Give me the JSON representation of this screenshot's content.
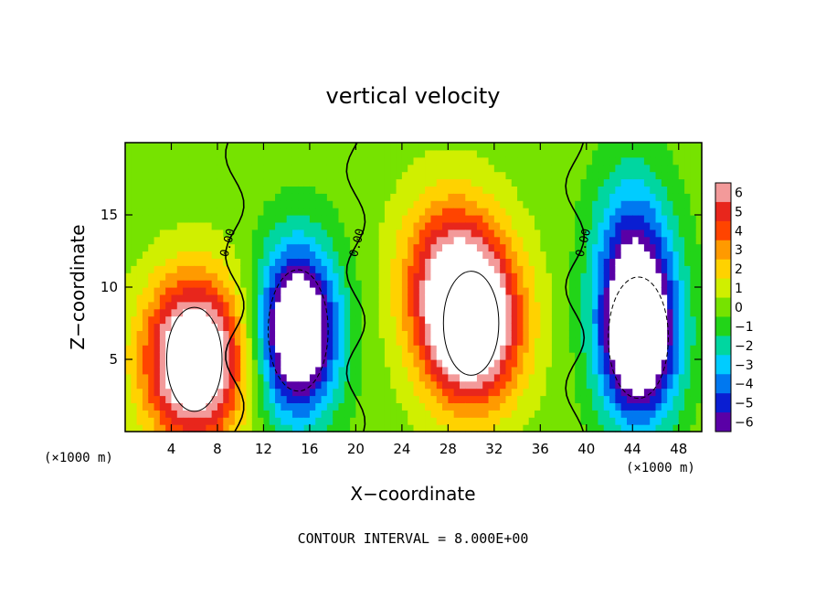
{
  "chart_data": {
    "type": "heatmap",
    "title": "vertical velocity",
    "xlabel": "X−coordinate",
    "ylabel": "Z−coordinate",
    "x_unit_left": "(×1000 m)",
    "x_unit_right": "(×1000 m)",
    "footer": "CONTOUR INTERVAL = 8.000E+00",
    "contour_label": "0.00",
    "xlim": [
      0,
      50
    ],
    "ylim": [
      0,
      20
    ],
    "x_ticks": [
      4,
      8,
      12,
      16,
      20,
      24,
      28,
      32,
      36,
      40,
      44,
      48
    ],
    "y_ticks": [
      5,
      10,
      15
    ],
    "colorbar": {
      "ticks": [
        6,
        5,
        4,
        3,
        2,
        1,
        0,
        -1,
        -2,
        -3,
        -4,
        -5,
        -6
      ],
      "labels": [
        "6",
        "5",
        "4",
        "3",
        "2",
        "1",
        "0",
        "−1",
        "−2",
        "−3",
        "−4",
        "−5",
        "−6"
      ],
      "colors": [
        "#f39a9a",
        "#e8261c",
        "#ff4400",
        "#ff9a00",
        "#ffd200",
        "#d0ef00",
        "#76e300",
        "#22d418",
        "#00d6a0",
        "#00ccff",
        "#0078f0",
        "#0a1ed2",
        "#5a00a6"
      ]
    },
    "updrafts": [
      {
        "x": 6.0,
        "z": 5.0,
        "peak": 10
      },
      {
        "x": 30.0,
        "z": 7.5,
        "peak": 10
      },
      {
        "x": 28.0,
        "z": 11.5,
        "peak": 4
      }
    ],
    "downdrafts": [
      {
        "x": 15.0,
        "z": 7.0,
        "peak": -10
      },
      {
        "x": 44.5,
        "z": 6.5,
        "peak": -10
      },
      {
        "x": 44.0,
        "z": 13.0,
        "peak": -4
      }
    ],
    "zero_contours_x": [
      9.5,
      20.0,
      39.0
    ]
  }
}
